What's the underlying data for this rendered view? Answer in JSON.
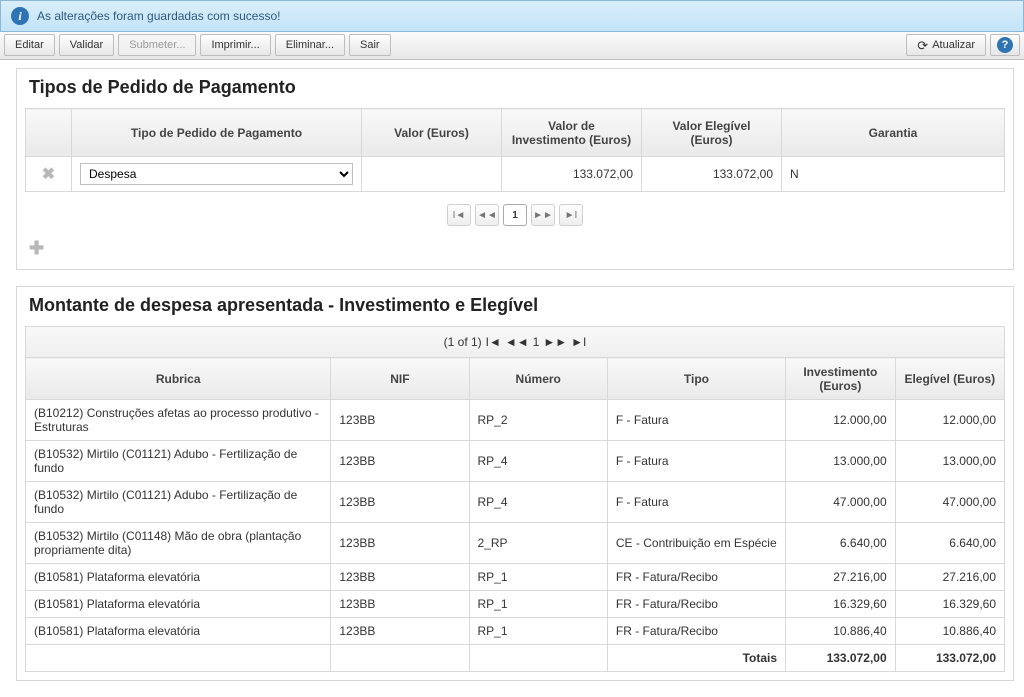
{
  "info_bar": {
    "message": "As alterações foram guardadas com sucesso!"
  },
  "toolbar": {
    "editar": "Editar",
    "validar": "Validar",
    "submeter": "Submeter...",
    "imprimir": "Imprimir...",
    "eliminar": "Eliminar...",
    "sair": "Sair",
    "atualizar": "Atualizar"
  },
  "panel1": {
    "title": "Tipos de Pedido de Pagamento",
    "headers": {
      "tipo": "Tipo de Pedido de Pagamento",
      "valor": "Valor (Euros)",
      "valor_inv": "Valor de Investimento (Euros)",
      "valor_eleg": "Valor Elegível (Euros)",
      "garantia": "Garantia"
    },
    "row": {
      "tipo_selected": "Despesa",
      "valor": "",
      "valor_inv": "133.072,00",
      "valor_eleg": "133.072,00",
      "garantia": "N"
    },
    "page_current": "1"
  },
  "panel2": {
    "title": "Montante de despesa apresentada - Investimento e Elegível",
    "page_info": "(1 of 1)",
    "page_current": "1",
    "headers": {
      "rubrica": "Rubrica",
      "nif": "NIF",
      "numero": "Número",
      "tipo": "Tipo",
      "investimento": "Investimento (Euros)",
      "elegivel": "Elegível (Euros)"
    },
    "rows": [
      {
        "rubrica": "(B10212) Construções afetas ao processo produtivo - Estruturas",
        "nif": "123BB",
        "numero": "RP_2",
        "tipo": "F - Fatura",
        "inv": "12.000,00",
        "eleg": "12.000,00"
      },
      {
        "rubrica": "(B10532) Mirtilo (C01121) Adubo - Fertilização de fundo",
        "nif": "123BB",
        "numero": "RP_4",
        "tipo": "F - Fatura",
        "inv": "13.000,00",
        "eleg": "13.000,00"
      },
      {
        "rubrica": "(B10532) Mirtilo (C01121) Adubo - Fertilização de fundo",
        "nif": "123BB",
        "numero": "RP_4",
        "tipo": "F - Fatura",
        "inv": "47.000,00",
        "eleg": "47.000,00"
      },
      {
        "rubrica": "(B10532) Mirtilo (C01148) Mão de obra (plantação propriamente dita)",
        "nif": "123BB",
        "numero": "2_RP",
        "tipo": "CE - Contribuição em Espécie",
        "inv": "6.640,00",
        "eleg": "6.640,00"
      },
      {
        "rubrica": "(B10581) Plataforma elevatória",
        "nif": "123BB",
        "numero": "RP_1",
        "tipo": "FR - Fatura/Recibo",
        "inv": "27.216,00",
        "eleg": "27.216,00"
      },
      {
        "rubrica": "(B10581) Plataforma elevatória",
        "nif": "123BB",
        "numero": "RP_1",
        "tipo": "FR - Fatura/Recibo",
        "inv": "16.329,60",
        "eleg": "16.329,60"
      },
      {
        "rubrica": "(B10581) Plataforma elevatória",
        "nif": "123BB",
        "numero": "RP_1",
        "tipo": "FR - Fatura/Recibo",
        "inv": "10.886,40",
        "eleg": "10.886,40"
      }
    ],
    "totals": {
      "label": "Totais",
      "inv": "133.072,00",
      "eleg": "133.072,00"
    }
  }
}
